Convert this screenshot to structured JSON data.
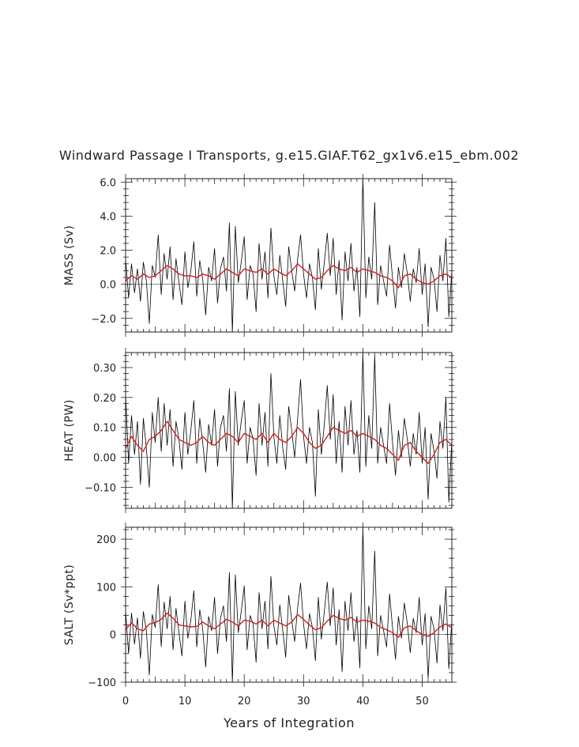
{
  "title": "Windward Passage I Transports, g.e15.GIAF.T62_gx1v6.e15_ebm.002",
  "xlabel": "Years of Integration",
  "colors": {
    "raw": "#000000",
    "smooth": "#cc2222"
  },
  "chart_data": [
    {
      "type": "line",
      "ylabel": "MASS (Sv)",
      "xlim": [
        0,
        55
      ],
      "ylim": [
        -2.8,
        6.2
      ],
      "yticks": [
        -2.0,
        0.0,
        2.0,
        4.0,
        6.0
      ],
      "ytick_labels": [
        "−2.0",
        "0.0",
        "2.0",
        "4.0",
        "6.0"
      ],
      "xticks": [
        0,
        10,
        20,
        30,
        40,
        50
      ],
      "series": [
        {
          "role": "raw",
          "x": [
            0.0,
            0.5,
            1.0,
            1.5,
            2.0,
            2.5,
            3.0,
            3.5,
            4.0,
            4.5,
            5.0,
            5.5,
            6.0,
            6.5,
            7.0,
            7.5,
            8.0,
            8.5,
            9.0,
            9.5,
            10.0,
            10.5,
            11.0,
            11.5,
            12.0,
            12.5,
            13.0,
            13.5,
            14.0,
            14.5,
            15.0,
            15.5,
            16.0,
            16.5,
            17.0,
            17.5,
            18.0,
            18.5,
            19.0,
            19.5,
            20.0,
            20.5,
            21.0,
            21.5,
            22.0,
            22.5,
            23.0,
            23.5,
            24.0,
            24.5,
            25.0,
            25.5,
            26.0,
            26.5,
            27.0,
            27.5,
            28.0,
            28.5,
            29.0,
            29.5,
            30.0,
            30.5,
            31.0,
            31.5,
            32.0,
            32.5,
            33.0,
            33.5,
            34.0,
            34.5,
            35.0,
            35.5,
            36.0,
            36.5,
            37.0,
            37.5,
            38.0,
            38.5,
            39.0,
            39.5,
            40.0,
            40.5,
            41.0,
            41.5,
            42.0,
            42.5,
            43.0,
            43.5,
            44.0,
            44.5,
            45.0,
            45.5,
            46.0,
            46.5,
            47.0,
            47.5,
            48.0,
            48.5,
            49.0,
            49.5,
            50.0,
            50.5,
            51.0,
            51.5,
            52.0,
            52.5,
            53.0,
            53.5,
            54.0,
            54.5,
            55.0
          ],
          "y": [
            1.5,
            -0.8,
            1.2,
            -0.5,
            0.9,
            -1.0,
            1.3,
            0.2,
            -2.3,
            1.1,
            0.4,
            2.9,
            -0.6,
            1.8,
            0.3,
            2.2,
            -0.9,
            1.5,
            0.1,
            -1.2,
            1.9,
            -0.2,
            0.8,
            2.5,
            -0.7,
            1.4,
            0.3,
            -1.8,
            1.0,
            0.2,
            2.1,
            -1.1,
            0.9,
            1.6,
            -0.4,
            3.6,
            -2.8,
            3.4,
            0.1,
            1.3,
            2.8,
            -0.9,
            1.1,
            0.6,
            -1.6,
            2.4,
            0.3,
            1.9,
            -0.8,
            3.3,
            0.5,
            -0.6,
            1.7,
            0.2,
            -1.3,
            2.2,
            0.8,
            -0.4,
            1.5,
            2.9,
            0.6,
            -0.8,
            1.2,
            0.4,
            -1.5,
            2.1,
            -0.3,
            1.3,
            3.0,
            0.5,
            2.7,
            -0.6,
            1.4,
            -2.1,
            1.9,
            0.2,
            2.4,
            -0.4,
            1.0,
            -1.9,
            6.3,
            -0.8,
            1.6,
            0.3,
            4.8,
            -1.2,
            1.1,
            0.2,
            -0.7,
            2.3,
            0.4,
            -1.4,
            1.0,
            -0.2,
            1.8,
            0.6,
            -1.0,
            0.9,
            0.1,
            2.1,
            -0.6,
            1.2,
            -2.5,
            1.0,
            0.3,
            -1.6,
            1.7,
            0.2,
            2.7,
            -1.9,
            0.8
          ]
        },
        {
          "role": "smooth",
          "x": [
            0,
            1,
            2,
            3,
            4,
            5,
            6,
            7,
            8,
            9,
            10,
            11,
            12,
            13,
            14,
            15,
            16,
            17,
            18,
            19,
            20,
            21,
            22,
            23,
            24,
            25,
            26,
            27,
            28,
            29,
            30,
            31,
            32,
            33,
            34,
            35,
            36,
            37,
            38,
            39,
            40,
            41,
            42,
            43,
            44,
            45,
            46,
            47,
            48,
            49,
            50,
            51,
            52,
            53,
            54,
            55
          ],
          "y": [
            0.2,
            0.5,
            0.3,
            0.6,
            0.4,
            0.5,
            0.8,
            1.1,
            0.9,
            0.6,
            0.5,
            0.5,
            0.4,
            0.6,
            0.5,
            0.3,
            0.6,
            0.9,
            0.7,
            0.5,
            0.9,
            0.8,
            0.7,
            0.9,
            0.6,
            0.9,
            0.7,
            0.5,
            0.8,
            1.2,
            0.9,
            0.6,
            0.3,
            0.4,
            0.8,
            1.1,
            0.9,
            0.8,
            1.0,
            0.7,
            0.9,
            0.8,
            0.7,
            0.5,
            0.4,
            0.2,
            -0.2,
            0.5,
            0.6,
            0.3,
            0.1,
            0.0,
            0.2,
            0.5,
            0.6,
            0.4
          ]
        }
      ]
    },
    {
      "type": "line",
      "ylabel": "HEAT (PW)",
      "xlim": [
        0,
        55
      ],
      "ylim": [
        -0.17,
        0.35
      ],
      "yticks": [
        -0.1,
        0.0,
        0.1,
        0.2,
        0.3
      ],
      "ytick_labels": [
        "−0.10",
        "0.00",
        "0.10",
        "0.20",
        "0.30"
      ],
      "xticks": [
        0,
        10,
        20,
        30,
        40,
        50
      ],
      "series": [
        {
          "role": "raw",
          "x": [
            0.0,
            0.5,
            1.0,
            1.5,
            2.0,
            2.5,
            3.0,
            3.5,
            4.0,
            4.5,
            5.0,
            5.5,
            6.0,
            6.5,
            7.0,
            7.5,
            8.0,
            8.5,
            9.0,
            9.5,
            10.0,
            10.5,
            11.0,
            11.5,
            12.0,
            12.5,
            13.0,
            13.5,
            14.0,
            14.5,
            15.0,
            15.5,
            16.0,
            16.5,
            17.0,
            17.5,
            18.0,
            18.5,
            19.0,
            19.5,
            20.0,
            20.5,
            21.0,
            21.5,
            22.0,
            22.5,
            23.0,
            23.5,
            24.0,
            24.5,
            25.0,
            25.5,
            26.0,
            26.5,
            27.0,
            27.5,
            28.0,
            28.5,
            29.0,
            29.5,
            30.0,
            30.5,
            31.0,
            31.5,
            32.0,
            32.5,
            33.0,
            33.5,
            34.0,
            34.5,
            35.0,
            35.5,
            36.0,
            36.5,
            37.0,
            37.5,
            38.0,
            38.5,
            39.0,
            39.5,
            40.0,
            40.5,
            41.0,
            41.5,
            42.0,
            42.5,
            43.0,
            43.5,
            44.0,
            44.5,
            45.0,
            45.5,
            46.0,
            46.5,
            47.0,
            47.5,
            48.0,
            48.5,
            49.0,
            49.5,
            50.0,
            50.5,
            51.0,
            51.5,
            52.0,
            52.5,
            53.0,
            53.5,
            54.0,
            54.5,
            55.0
          ],
          "y": [
            0.21,
            -0.02,
            0.14,
            0.01,
            0.12,
            -0.09,
            0.13,
            0.03,
            -0.1,
            0.15,
            0.05,
            0.2,
            0.02,
            0.18,
            0.04,
            0.16,
            -0.03,
            0.12,
            0.06,
            -0.04,
            0.15,
            0.01,
            0.09,
            0.19,
            -0.02,
            0.13,
            0.05,
            -0.05,
            0.11,
            0.04,
            0.16,
            -0.03,
            0.1,
            0.14,
            0.02,
            0.23,
            -0.17,
            0.22,
            0.04,
            0.12,
            0.19,
            -0.02,
            0.1,
            0.06,
            -0.06,
            0.18,
            0.04,
            0.15,
            -0.03,
            0.28,
            0.07,
            -0.02,
            0.14,
            0.03,
            -0.04,
            0.17,
            0.09,
            0.0,
            0.13,
            0.26,
            0.07,
            -0.02,
            0.1,
            0.05,
            -0.13,
            0.16,
            0.01,
            0.11,
            0.24,
            0.06,
            0.21,
            -0.02,
            0.12,
            -0.05,
            0.17,
            0.04,
            0.19,
            0.01,
            0.09,
            -0.05,
            0.35,
            -0.03,
            0.14,
            0.03,
            0.34,
            -0.02,
            0.1,
            0.04,
            -0.02,
            0.18,
            0.05,
            -0.06,
            0.09,
            0.0,
            0.13,
            0.06,
            -0.03,
            0.08,
            0.01,
            0.15,
            -0.02,
            0.1,
            -0.14,
            0.08,
            0.02,
            -0.07,
            0.12,
            0.03,
            0.2,
            -0.15,
            0.06
          ]
        },
        {
          "role": "smooth",
          "x": [
            0,
            1,
            2,
            3,
            4,
            5,
            6,
            7,
            8,
            9,
            10,
            11,
            12,
            13,
            14,
            15,
            16,
            17,
            18,
            19,
            20,
            21,
            22,
            23,
            24,
            25,
            26,
            27,
            28,
            29,
            30,
            31,
            32,
            33,
            34,
            35,
            36,
            37,
            38,
            39,
            40,
            41,
            42,
            43,
            44,
            45,
            46,
            47,
            48,
            49,
            50,
            51,
            52,
            53,
            54,
            55
          ],
          "y": [
            0.03,
            0.07,
            0.04,
            0.02,
            0.06,
            0.07,
            0.09,
            0.12,
            0.09,
            0.06,
            0.05,
            0.04,
            0.05,
            0.07,
            0.05,
            0.04,
            0.06,
            0.08,
            0.07,
            0.05,
            0.08,
            0.07,
            0.06,
            0.08,
            0.05,
            0.08,
            0.06,
            0.05,
            0.07,
            0.1,
            0.08,
            0.05,
            0.03,
            0.04,
            0.07,
            0.1,
            0.09,
            0.08,
            0.09,
            0.07,
            0.08,
            0.07,
            0.06,
            0.04,
            0.03,
            0.01,
            -0.01,
            0.04,
            0.05,
            0.02,
            0.0,
            -0.02,
            0.01,
            0.05,
            0.06,
            0.04
          ]
        }
      ]
    },
    {
      "type": "line",
      "ylabel": "SALT (Sv*ppt)",
      "xlim": [
        0,
        55
      ],
      "ylim": [
        -100,
        225
      ],
      "yticks": [
        -100,
        0,
        100,
        200
      ],
      "ytick_labels": [
        "−100",
        "0",
        "100",
        "200"
      ],
      "xticks": [
        0,
        10,
        20,
        30,
        40,
        50
      ],
      "xtick_labels": [
        "0",
        "10",
        "20",
        "30",
        "40",
        "50"
      ],
      "series": [
        {
          "role": "raw",
          "x": [
            0.0,
            0.5,
            1.0,
            1.5,
            2.0,
            2.5,
            3.0,
            3.5,
            4.0,
            4.5,
            5.0,
            5.5,
            6.0,
            6.5,
            7.0,
            7.5,
            8.0,
            8.5,
            9.0,
            9.5,
            10.0,
            10.5,
            11.0,
            11.5,
            12.0,
            12.5,
            13.0,
            13.5,
            14.0,
            14.5,
            15.0,
            15.5,
            16.0,
            16.5,
            17.0,
            17.5,
            18.0,
            18.5,
            19.0,
            19.5,
            20.0,
            20.5,
            21.0,
            21.5,
            22.0,
            22.5,
            23.0,
            23.5,
            24.0,
            24.5,
            25.0,
            25.5,
            26.0,
            26.5,
            27.0,
            27.5,
            28.0,
            28.5,
            29.0,
            29.5,
            30.0,
            30.5,
            31.0,
            31.5,
            32.0,
            32.5,
            33.0,
            33.5,
            34.0,
            34.5,
            35.0,
            35.5,
            36.0,
            36.5,
            37.0,
            37.5,
            38.0,
            38.5,
            39.0,
            39.5,
            40.0,
            40.5,
            41.0,
            41.5,
            42.0,
            42.5,
            43.0,
            43.5,
            44.0,
            44.5,
            45.0,
            45.5,
            46.0,
            46.5,
            47.0,
            47.5,
            48.0,
            48.5,
            49.0,
            49.5,
            50.0,
            50.5,
            51.0,
            51.5,
            52.0,
            52.5,
            53.0,
            53.5,
            54.0,
            54.5,
            55.0
          ],
          "y": [
            50,
            -40,
            45,
            -20,
            35,
            -50,
            48,
            8,
            -85,
            42,
            15,
            105,
            -25,
            68,
            12,
            80,
            -32,
            55,
            4,
            -45,
            70,
            -8,
            30,
            92,
            -26,
            52,
            12,
            -68,
            38,
            8,
            78,
            -40,
            34,
            60,
            -15,
            130,
            -100,
            125,
            4,
            48,
            102,
            -32,
            40,
            22,
            -58,
            88,
            12,
            70,
            -30,
            122,
            18,
            -22,
            62,
            8,
            -48,
            82,
            30,
            -15,
            56,
            108,
            22,
            -30,
            44,
            15,
            -55,
            78,
            -10,
            48,
            110,
            18,
            98,
            -22,
            52,
            -78,
            70,
            8,
            88,
            -15,
            38,
            -70,
            225,
            -30,
            60,
            12,
            175,
            -45,
            40,
            8,
            -26,
            85,
            15,
            -52,
            38,
            -8,
            66,
            22,
            -38,
            34,
            4,
            78,
            -22,
            44,
            -92,
            38,
            12,
            -60,
            62,
            8,
            98,
            -72,
            30
          ]
        },
        {
          "role": "smooth",
          "x": [
            0,
            1,
            2,
            3,
            4,
            5,
            6,
            7,
            8,
            9,
            10,
            11,
            12,
            13,
            14,
            15,
            16,
            17,
            18,
            19,
            20,
            21,
            22,
            23,
            24,
            25,
            26,
            27,
            28,
            29,
            30,
            31,
            32,
            33,
            34,
            35,
            36,
            37,
            38,
            39,
            40,
            41,
            42,
            43,
            44,
            45,
            46,
            47,
            48,
            49,
            50,
            51,
            52,
            53,
            54,
            55
          ],
          "y": [
            10,
            25,
            12,
            8,
            22,
            25,
            32,
            45,
            34,
            20,
            18,
            16,
            17,
            26,
            18,
            12,
            22,
            32,
            26,
            18,
            30,
            28,
            22,
            30,
            18,
            30,
            24,
            18,
            26,
            42,
            32,
            20,
            10,
            14,
            28,
            40,
            34,
            30,
            36,
            26,
            30,
            28,
            24,
            15,
            10,
            4,
            -6,
            14,
            18,
            8,
            0,
            -4,
            4,
            16,
            22,
            14
          ]
        }
      ]
    }
  ]
}
